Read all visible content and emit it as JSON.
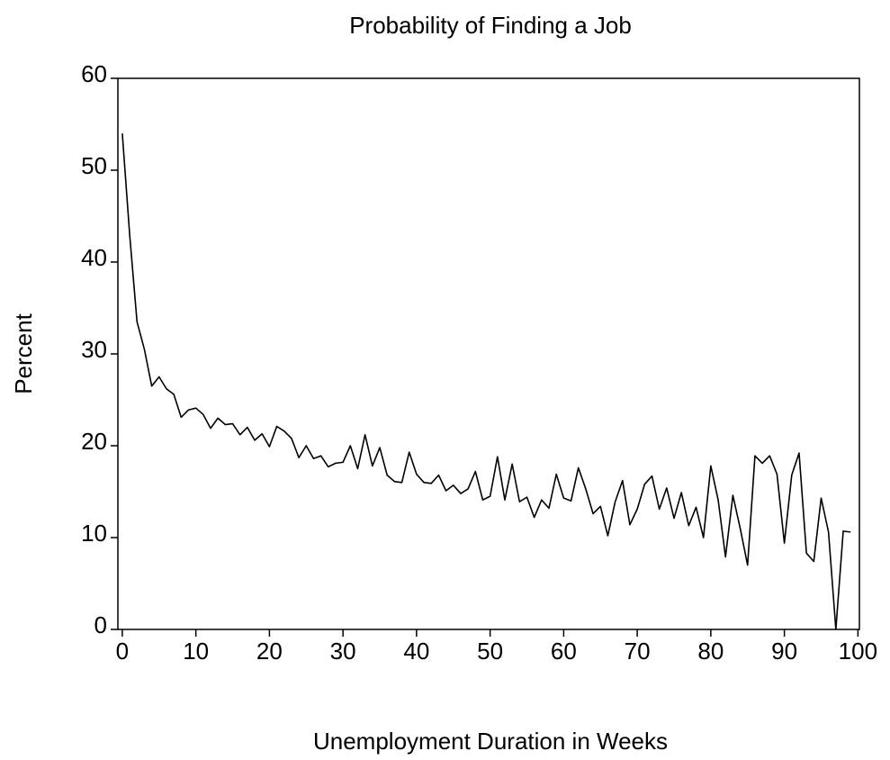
{
  "chart_data": {
    "type": "line",
    "title": "Probability of Finding a Job",
    "x_label": "Unemployment Duration in Weeks",
    "y_label": "Percent",
    "x": [
      0,
      1,
      2,
      3,
      4,
      5,
      6,
      7,
      8,
      9,
      10,
      11,
      12,
      13,
      14,
      15,
      16,
      17,
      18,
      19,
      20,
      21,
      22,
      23,
      24,
      25,
      26,
      27,
      28,
      29,
      30,
      31,
      32,
      33,
      34,
      35,
      36,
      37,
      38,
      39,
      40,
      41,
      42,
      43,
      44,
      45,
      46,
      47,
      48,
      49,
      50,
      51,
      52,
      53,
      54,
      55,
      56,
      57,
      58,
      59,
      60,
      61,
      62,
      63,
      64,
      65,
      66,
      67,
      68,
      69,
      70,
      71,
      72,
      73,
      74,
      75,
      76,
      77,
      78,
      79,
      80,
      81,
      82,
      83,
      84,
      85,
      86,
      87,
      88,
      89,
      90,
      91,
      92,
      93,
      94,
      95,
      96,
      97,
      98,
      99
    ],
    "values": [
      54,
      43,
      33.5,
      30.5,
      26.5,
      27.5,
      26.2,
      25.6,
      23.1,
      23.9,
      24.1,
      23.4,
      21.9,
      23,
      22.3,
      22.4,
      21.2,
      22,
      20.6,
      21.3,
      19.9,
      22.1,
      21.6,
      20.8,
      18.7,
      20,
      18.6,
      18.9,
      17.7,
      18.1,
      18.2,
      20,
      17.5,
      21.2,
      17.8,
      19.8,
      16.8,
      16.1,
      16,
      19.3,
      16.9,
      16,
      15.9,
      16.8,
      15.1,
      15.7,
      14.8,
      15.3,
      17.2,
      14.1,
      14.5,
      18.8,
      14.1,
      18,
      13.9,
      14.4,
      12.2,
      14.1,
      13.2,
      16.9,
      14.3,
      14,
      17.6,
      15.3,
      12.6,
      13.4,
      10.2,
      13.9,
      16.2,
      11.4,
      13.1,
      15.8,
      16.7,
      13.1,
      15.4,
      12.1,
      14.9,
      11.3,
      13.3,
      10,
      17.8,
      14.1,
      7.9,
      14.6,
      11,
      7,
      18.9,
      18.1,
      18.9,
      16.9,
      9.4,
      16.8,
      19.2,
      8.3,
      7.4,
      14.3,
      10.6,
      0,
      10.7,
      10.6
    ],
    "color": "#000000",
    "xlim": [
      -0.6,
      100.2
    ],
    "xticks": [
      0,
      10,
      20,
      30,
      40,
      50,
      60,
      70,
      80,
      90,
      100
    ],
    "ylim": [
      0,
      60
    ],
    "yticks": [
      0,
      10,
      20,
      30,
      40,
      50,
      60
    ],
    "grid": false
  }
}
